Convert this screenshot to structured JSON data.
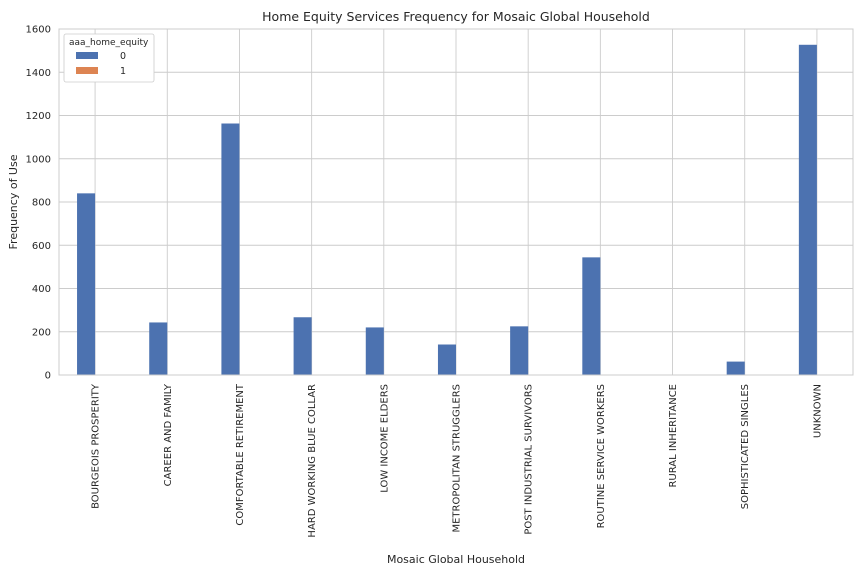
{
  "chart_data": {
    "type": "bar",
    "title": "Home Equity Services Frequency for Mosaic Global Household",
    "xlabel": "Mosaic Global Household",
    "ylabel": "Frequency of Use",
    "categories": [
      "BOURGEOIS PROSPERITY",
      "CAREER AND FAMILY",
      "COMFORTABLE RETIREMENT",
      "HARD WORKING BLUE COLLAR",
      "LOW INCOME ELDERS",
      "METROPOLITAN STRUGGLERS",
      "POST INDUSTRIAL SURVIVORS",
      "ROUTINE SERVICE WORKERS",
      "RURAL INHERITANCE",
      "SOPHISTICATED SINGLES",
      "UNKNOWN"
    ],
    "series": [
      {
        "name": "0",
        "color": "#4c72b0",
        "values": [
          840,
          243,
          1163,
          267,
          220,
          141,
          225,
          544,
          0,
          62,
          1527
        ]
      },
      {
        "name": "1",
        "color": "#dd8452",
        "values": [
          0,
          0,
          0,
          0,
          0,
          0,
          0,
          0,
          0,
          0,
          0
        ]
      }
    ],
    "ylim": [
      0,
      1600
    ],
    "yticks": [
      0,
      200,
      400,
      600,
      800,
      1000,
      1200,
      1400,
      1600
    ],
    "grid": true,
    "legend": {
      "title": "aaa_home_equity",
      "position": "top-left"
    }
  }
}
